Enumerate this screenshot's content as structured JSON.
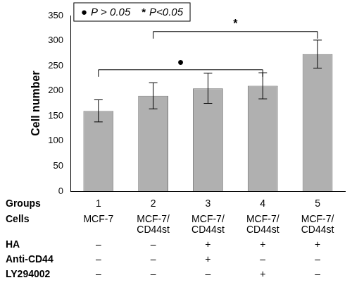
{
  "chart_data": {
    "type": "bar",
    "x_label": "Groups",
    "categories": [
      "1",
      "2",
      "3",
      "4",
      "5"
    ],
    "values": [
      160,
      190,
      205,
      210,
      273
    ],
    "errors": [
      22,
      26,
      30,
      26,
      28
    ],
    "color": "#b0b0b0",
    "y_label": "Cell number",
    "ylim": [
      0,
      350
    ],
    "yticks": [
      0,
      50,
      100,
      150,
      200,
      250,
      300,
      350
    ],
    "grid": false,
    "table": {
      "rows": [
        {
          "label": "Cells",
          "cells": [
            "MCF-7",
            "MCF-7/CD44st",
            "MCF-7/CD44st",
            "MCF-7/CD44st",
            "MCF-7/CD44st"
          ]
        },
        {
          "label": "HA",
          "cells": [
            "–",
            "–",
            "+",
            "+",
            "+"
          ]
        },
        {
          "label": "Anti-CD44",
          "cells": [
            "–",
            "–",
            "+",
            "–",
            "–"
          ]
        },
        {
          "label": "LY294002",
          "cells": [
            "–",
            "–",
            "–",
            "+",
            "–"
          ]
        }
      ]
    },
    "significance": [
      {
        "from": "1",
        "to": "4",
        "y": 242,
        "symbol": "●"
      },
      {
        "from": "2",
        "to": "5",
        "y": 318,
        "symbol": "*"
      }
    ],
    "significance_key": [
      {
        "symbol": "●",
        "text": "P > 0.05"
      },
      {
        "symbol": "*",
        "text": "P<0.05"
      }
    ]
  }
}
